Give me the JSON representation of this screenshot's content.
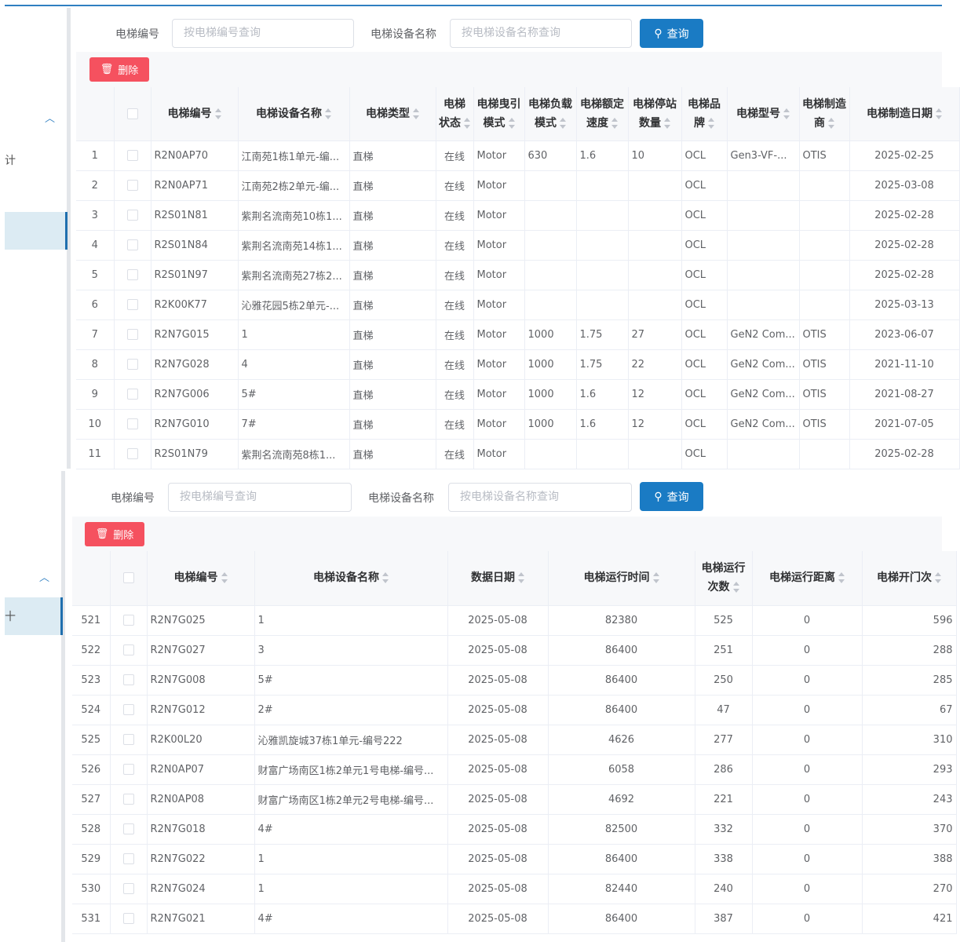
{
  "colors": {
    "accent": "#1a7bc4",
    "danger": "#f5515f",
    "active_bg": "#dcebf3"
  },
  "sidebar": {
    "item_label": "计",
    "item_label_2": "十"
  },
  "search": {
    "code_label": "电梯编号",
    "code_placeholder": "按电梯编号查询",
    "name_label": "电梯设备名称",
    "name_placeholder": "按电梯设备名称查询",
    "query_label": "查询"
  },
  "toolbar": {
    "delete_label": "删除"
  },
  "table1": {
    "columns": [
      "",
      "",
      "电梯编号",
      "电梯设备名称",
      "电梯类型",
      "电梯状态",
      "电梯曳引模式",
      "电梯负载模式",
      "电梯额定速度",
      "电梯停站数量",
      "电梯品牌",
      "电梯型号",
      "电梯制造商",
      "电梯制造日期"
    ],
    "rows": [
      [
        "1",
        "R2N0AP70",
        "江南苑1栋1单元-编...",
        "直梯",
        "在线",
        "Motor",
        "630",
        "1.6",
        "10",
        "OCL",
        "Gen3-VF-...",
        "OTIS",
        "2025-02-25"
      ],
      [
        "2",
        "R2N0AP71",
        "江南苑2栋2单元-编...",
        "直梯",
        "在线",
        "Motor",
        "",
        "",
        "",
        "OCL",
        "",
        "",
        "2025-03-08"
      ],
      [
        "3",
        "R2S01N81",
        "紫荆名流南苑10栋1...",
        "直梯",
        "在线",
        "Motor",
        "",
        "",
        "",
        "OCL",
        "",
        "",
        "2025-02-28"
      ],
      [
        "4",
        "R2S01N84",
        "紫荆名流南苑14栋1...",
        "直梯",
        "在线",
        "Motor",
        "",
        "",
        "",
        "OCL",
        "",
        "",
        "2025-02-28"
      ],
      [
        "5",
        "R2S01N97",
        "紫荆名流南苑27栋2...",
        "直梯",
        "在线",
        "Motor",
        "",
        "",
        "",
        "OCL",
        "",
        "",
        "2025-02-28"
      ],
      [
        "6",
        "R2K00K77",
        "沁雅花园5栋2单元-...",
        "直梯",
        "在线",
        "Motor",
        "",
        "",
        "",
        "OCL",
        "",
        "",
        "2025-03-13"
      ],
      [
        "7",
        "R2N7G015",
        "1",
        "直梯",
        "在线",
        "Motor",
        "1000",
        "1.75",
        "27",
        "OCL",
        "GeN2 Com...",
        "OTIS",
        "2023-06-07"
      ],
      [
        "8",
        "R2N7G028",
        "4",
        "直梯",
        "在线",
        "Motor",
        "1000",
        "1.75",
        "22",
        "OCL",
        "GeN2 Com...",
        "OTIS",
        "2021-11-10"
      ],
      [
        "9",
        "R2N7G006",
        "5#",
        "直梯",
        "在线",
        "Motor",
        "1000",
        "1.6",
        "12",
        "OCL",
        "GeN2 Com...",
        "OTIS",
        "2021-08-27"
      ],
      [
        "10",
        "R2N7G010",
        "7#",
        "直梯",
        "在线",
        "Motor",
        "1000",
        "1.6",
        "12",
        "OCL",
        "GeN2 Com...",
        "OTIS",
        "2021-07-05"
      ],
      [
        "11",
        "R2S01N79",
        "紫荆名流南苑8栋1...",
        "直梯",
        "在线",
        "Motor",
        "",
        "",
        "",
        "OCL",
        "",
        "",
        "2025-02-28"
      ]
    ]
  },
  "table2": {
    "columns": [
      "",
      "",
      "电梯编号",
      "电梯设备名称",
      "数据日期",
      "电梯运行时间",
      "电梯运行次数",
      "电梯运行距离",
      "电梯开门次"
    ],
    "rows": [
      [
        "521",
        "R2N7G025",
        "1",
        "2025-05-08",
        "82380",
        "525",
        "0",
        "596"
      ],
      [
        "522",
        "R2N7G027",
        "3",
        "2025-05-08",
        "86400",
        "251",
        "0",
        "288"
      ],
      [
        "523",
        "R2N7G008",
        "5#",
        "2025-05-08",
        "86400",
        "250",
        "0",
        "285"
      ],
      [
        "524",
        "R2N7G012",
        "2#",
        "2025-05-08",
        "86400",
        "47",
        "0",
        "67"
      ],
      [
        "525",
        "R2K00L20",
        "沁雅凯旋城37栋1单元-编号222",
        "2025-05-08",
        "4626",
        "277",
        "0",
        "310"
      ],
      [
        "526",
        "R2N0AP07",
        "财富广场南区1栋2单元1号电梯-编号...",
        "2025-05-08",
        "6058",
        "286",
        "0",
        "293"
      ],
      [
        "527",
        "R2N0AP08",
        "财富广场南区1栋2单元2号电梯-编号...",
        "2025-05-08",
        "4692",
        "221",
        "0",
        "243"
      ],
      [
        "528",
        "R2N7G018",
        "4#",
        "2025-05-08",
        "82500",
        "332",
        "0",
        "370"
      ],
      [
        "529",
        "R2N7G022",
        "1",
        "2025-05-08",
        "86400",
        "338",
        "0",
        "388"
      ],
      [
        "530",
        "R2N7G024",
        "1",
        "2025-05-08",
        "82440",
        "240",
        "0",
        "270"
      ],
      [
        "531",
        "R2N7G021",
        "4#",
        "2025-05-08",
        "86400",
        "387",
        "0",
        "421"
      ]
    ]
  }
}
